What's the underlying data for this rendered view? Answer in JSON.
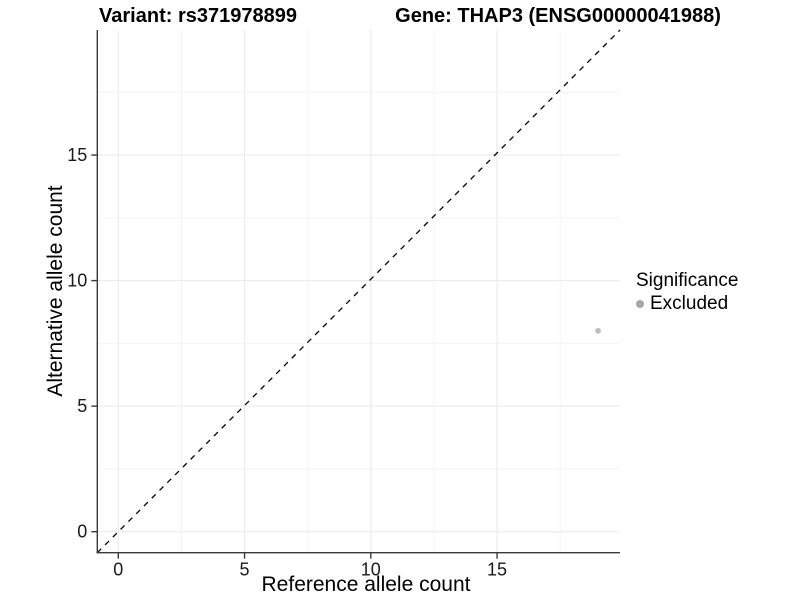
{
  "titles": {
    "left": "Variant: rs371978899",
    "right": "Gene: THAP3 (ENSG00000041988)"
  },
  "chart_data": {
    "type": "scatter",
    "xlabel": "Reference allele count",
    "ylabel": "Alternative allele count",
    "x_ticks": [
      0,
      5,
      10,
      15
    ],
    "y_ticks": [
      0,
      5,
      10,
      15
    ],
    "x_minor_ticks": [
      2.5,
      7.5,
      12.5,
      17.5
    ],
    "y_minor_ticks": [
      2.5,
      7.5,
      12.5,
      17.5
    ],
    "xlim": [
      -0.95,
      19.9
    ],
    "ylim": [
      -0.85,
      19.95
    ],
    "grid": "on",
    "identity_line": {
      "style": "dashed",
      "slope": 1,
      "intercept": 0
    },
    "series": [
      {
        "name": "Excluded",
        "points": [
          {
            "x": 19,
            "y": 8
          }
        ],
        "color": "#bdbdbd"
      }
    ],
    "legend": {
      "position": "right",
      "title": "Significance",
      "items": [
        {
          "label": "Excluded",
          "color": "#a6a6a6"
        }
      ]
    }
  },
  "colors": {
    "axis_line": "#3a3a3a",
    "tick_text": "#1a1a1a",
    "grid_major": "#e9e9e9",
    "grid_minor": "#f4f4f4",
    "identity_line": "#000000",
    "background": "#ffffff"
  }
}
